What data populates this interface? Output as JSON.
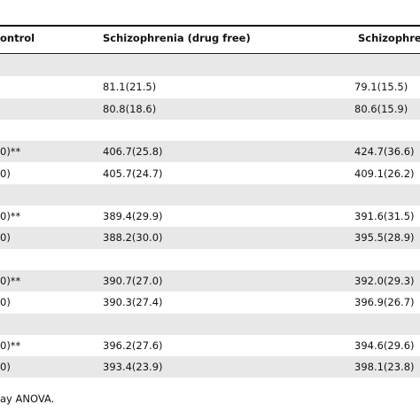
{
  "table": {
    "header": [
      "ontrol",
      "Schizophrenia (drug free)",
      "Schizophre"
    ],
    "rows": [
      [
        null,
        null,
        null
      ],
      [
        null,
        "81.1(21.5)",
        "79.1(15.5)"
      ],
      [
        null,
        "80.8(18.6)",
        "80.6(15.9)"
      ],
      [
        null,
        null,
        null
      ],
      [
        "0)**",
        "406.7(25.8)",
        "424.7(36.6)"
      ],
      [
        "0)",
        "405.7(24.7)",
        "409.1(26.2)"
      ],
      [
        null,
        null,
        null
      ],
      [
        "0)**",
        "389.4(29.9)",
        "391.6(31.5)"
      ],
      [
        "0)",
        "388.2(30.0)",
        "395.5(28.9)"
      ],
      [
        null,
        null,
        null
      ],
      [
        "0)**",
        "390.7(27.0)",
        "392.0(29.3)"
      ],
      [
        "0)",
        "390.3(27.4)",
        "396.9(26.7)"
      ],
      [
        null,
        null,
        null
      ],
      [
        "0)**",
        "396.2(27.6)",
        "394.6(29.6)"
      ],
      [
        "0)",
        "393.4(23.9)",
        "398.1(23.8)"
      ]
    ]
  },
  "footnote": "ay ANOVA."
}
